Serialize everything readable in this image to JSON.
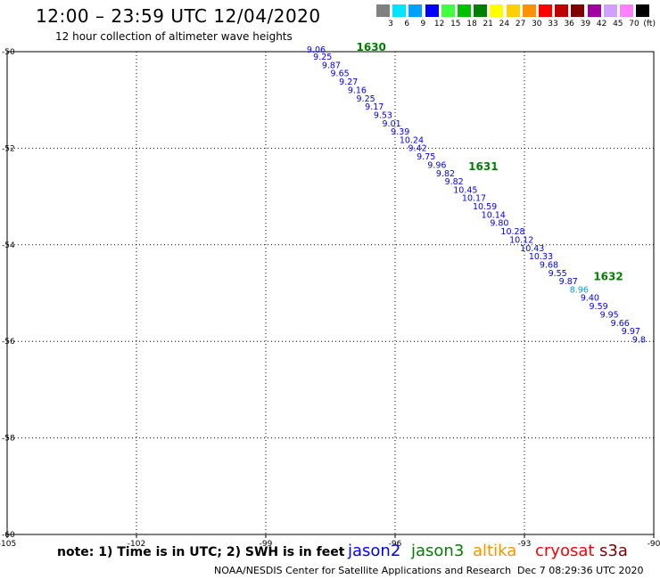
{
  "header": {
    "title": "12:00 – 23:59 UTC 12/04/2020",
    "subtitle": "12 hour collection of altimeter wave heights"
  },
  "colorbar": {
    "unit": "(ft)",
    "entries": [
      {
        "label": "3",
        "color": "#808080"
      },
      {
        "label": "6",
        "color": "#00e5ff"
      },
      {
        "label": "9",
        "color": "#00a0ff"
      },
      {
        "label": "12",
        "color": "#0000ff"
      },
      {
        "label": "15",
        "color": "#40ff40"
      },
      {
        "label": "18",
        "color": "#00c000"
      },
      {
        "label": "21",
        "color": "#008000"
      },
      {
        "label": "24",
        "color": "#ffff00"
      },
      {
        "label": "27",
        "color": "#ffd000"
      },
      {
        "label": "30",
        "color": "#ff9000"
      },
      {
        "label": "33",
        "color": "#ff0000"
      },
      {
        "label": "36",
        "color": "#c00000"
      },
      {
        "label": "39",
        "color": "#800000"
      },
      {
        "label": "42",
        "color": "#a000a0"
      },
      {
        "label": "45",
        "color": "#d0a0ff"
      },
      {
        "label": "70",
        "color": "#ff80ff"
      },
      {
        "label": "",
        "color": "#000000"
      }
    ]
  },
  "footer": {
    "note": "note: 1) Time is in UTC; 2) SWH is in feet",
    "legend": [
      {
        "label": "jason2",
        "color": "#0000ff"
      },
      {
        "label": "jason3",
        "color": "#008000"
      },
      {
        "label": "altika",
        "color": "#ff9000"
      },
      {
        "label": "cryosat",
        "color": "#ff0000"
      },
      {
        "label": "s3a",
        "color": "#800000"
      }
    ],
    "credit": "NOAA/NESDIS Center for Satellite Applications and Research",
    "timestamp": "Dec  7 08:29:36 UTC 2020"
  },
  "chart_data": {
    "type": "scatter",
    "xlim": [
      -105,
      -90
    ],
    "ylim": [
      -60,
      -50
    ],
    "x_ticks": [
      "-105",
      "-102",
      "-99",
      "-96",
      "-93",
      "-90"
    ],
    "y_ticks": [
      "-50",
      "-52",
      "-54",
      "-56",
      "-58",
      "-60"
    ],
    "grid": true,
    "time_labels": [
      {
        "text": "1630",
        "lon": -96.9,
        "lat": -49.98,
        "color": "#008000"
      },
      {
        "text": "1631",
        "lon": -94.3,
        "lat": -52.45,
        "color": "#008000"
      },
      {
        "text": "1632",
        "lon": -91.4,
        "lat": -54.73,
        "color": "#008000"
      }
    ],
    "series": [
      {
        "name": "jason3",
        "points": [
          {
            "lon": -98.05,
            "lat": -50.02,
            "swh": "9.06",
            "color": "#0000ff"
          },
          {
            "lon": -97.9,
            "lat": -50.17,
            "swh": "9.25",
            "color": "#0000ff"
          },
          {
            "lon": -97.7,
            "lat": -50.34,
            "swh": "9.87",
            "color": "#0000ff"
          },
          {
            "lon": -97.5,
            "lat": -50.51,
            "swh": "9.65",
            "color": "#0000ff"
          },
          {
            "lon": -97.3,
            "lat": -50.68,
            "swh": "9.27",
            "color": "#0000ff"
          },
          {
            "lon": -97.1,
            "lat": -50.86,
            "swh": "9.16",
            "color": "#0000ff"
          },
          {
            "lon": -96.9,
            "lat": -51.03,
            "swh": "9.25",
            "color": "#0000ff"
          },
          {
            "lon": -96.7,
            "lat": -51.2,
            "swh": "9.17",
            "color": "#0000ff"
          },
          {
            "lon": -96.5,
            "lat": -51.37,
            "swh": "9.53",
            "color": "#0000ff"
          },
          {
            "lon": -96.3,
            "lat": -51.55,
            "swh": "9.01",
            "color": "#0000ff"
          },
          {
            "lon": -96.1,
            "lat": -51.72,
            "swh": "9.39",
            "color": "#0000ff"
          },
          {
            "lon": -95.9,
            "lat": -51.89,
            "swh": "10.24",
            "color": "#0000ff"
          },
          {
            "lon": -95.7,
            "lat": -52.06,
            "swh": "9.42",
            "color": "#0000ff"
          },
          {
            "lon": -95.5,
            "lat": -52.23,
            "swh": "9.75",
            "color": "#0000ff"
          },
          {
            "lon": -95.25,
            "lat": -52.41,
            "swh": "9.96",
            "color": "#0000ff"
          },
          {
            "lon": -95.05,
            "lat": -52.58,
            "swh": "9.82",
            "color": "#0000ff"
          },
          {
            "lon": -94.85,
            "lat": -52.75,
            "swh": "9.82",
            "color": "#0000ff"
          },
          {
            "lon": -94.65,
            "lat": -52.92,
            "swh": "10.45",
            "color": "#0000ff"
          },
          {
            "lon": -94.45,
            "lat": -53.09,
            "swh": "10.17",
            "color": "#0000ff"
          },
          {
            "lon": -94.2,
            "lat": -53.27,
            "swh": "10.59",
            "color": "#0000ff"
          },
          {
            "lon": -94.0,
            "lat": -53.44,
            "swh": "10.14",
            "color": "#0000ff"
          },
          {
            "lon": -93.8,
            "lat": -53.61,
            "swh": "9.80",
            "color": "#0000ff"
          },
          {
            "lon": -93.55,
            "lat": -53.78,
            "swh": "10.28",
            "color": "#0000ff"
          },
          {
            "lon": -93.35,
            "lat": -53.96,
            "swh": "10.12",
            "color": "#0000ff"
          },
          {
            "lon": -93.1,
            "lat": -54.13,
            "swh": "10.43",
            "color": "#0000ff"
          },
          {
            "lon": -92.9,
            "lat": -54.3,
            "swh": "10.33",
            "color": "#0000ff"
          },
          {
            "lon": -92.65,
            "lat": -54.47,
            "swh": "9.68",
            "color": "#0000ff"
          },
          {
            "lon": -92.45,
            "lat": -54.65,
            "swh": "9.55",
            "color": "#0000ff"
          },
          {
            "lon": -92.2,
            "lat": -54.82,
            "swh": "9.87",
            "color": "#0000ff"
          },
          {
            "lon": -91.95,
            "lat": -54.99,
            "swh": "8.96",
            "color": "#00a0ff"
          },
          {
            "lon": -91.7,
            "lat": -55.16,
            "swh": "9.40",
            "color": "#0000ff"
          },
          {
            "lon": -91.5,
            "lat": -55.33,
            "swh": "9.59",
            "color": "#0000ff"
          },
          {
            "lon": -91.25,
            "lat": -55.51,
            "swh": "9.95",
            "color": "#0000ff"
          },
          {
            "lon": -91.0,
            "lat": -55.68,
            "swh": "9.66",
            "color": "#0000ff"
          },
          {
            "lon": -90.75,
            "lat": -55.85,
            "swh": "9.97",
            "color": "#0000ff"
          },
          {
            "lon": -90.5,
            "lat": -56.02,
            "swh": "9.8",
            "color": "#0000ff"
          }
        ]
      }
    ]
  }
}
